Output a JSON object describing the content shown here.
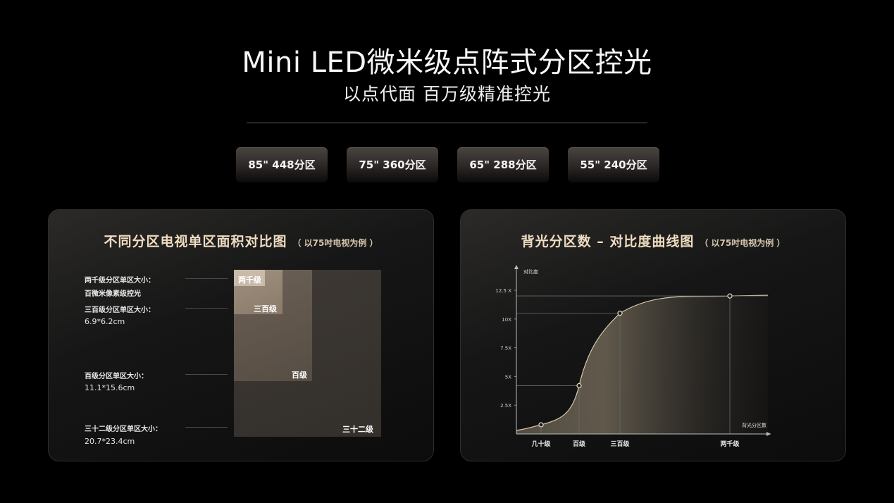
{
  "header": {
    "title": "Mini LED微米级点阵式分区控光",
    "subtitle": "以点代面 百万级精准控光"
  },
  "zones": [
    {
      "label": "85\" 448分区"
    },
    {
      "label": "75\" 360分区"
    },
    {
      "label": "65\" 288分区"
    },
    {
      "label": "55\" 240分区"
    }
  ],
  "left_panel": {
    "title": "不同分区电视单区面积对比图",
    "note": "（ 以75吋电视为例 ）",
    "specs": [
      {
        "label": "两千级分区单区大小：",
        "value": "百微米像素级控光"
      },
      {
        "label": "三百级分区单区大小：",
        "value": "6.9*6.2cm"
      },
      {
        "label": "百级分区单区大小：",
        "value": "11.1*15.6cm"
      },
      {
        "label": "三十二级分区单区大小：",
        "value": "20.7*23.4cm"
      }
    ],
    "boxes": {
      "b2000": "两千级",
      "b300": "三百级",
      "b100": "百级",
      "b32": "三十二级"
    }
  },
  "right_panel": {
    "title": "背光分区数 – 对比度曲线图",
    "note": "（ 以75吋电视为例 ）"
  },
  "chart_data": {
    "type": "area",
    "title": "背光分区数 – 对比度曲线图",
    "xlabel": "背光分区数",
    "ylabel": "对比度",
    "y_ticks": [
      "2.5X",
      "5X",
      "7.5X",
      "10X",
      "12.5 X"
    ],
    "ylim": [
      0,
      12.5
    ],
    "x": [
      "几十级",
      "百级",
      "三百级",
      "两千级"
    ],
    "values": [
      0.8,
      4.2,
      10.5,
      12.0
    ]
  },
  "colors": {
    "accent_title": "#efdcc0",
    "curve": "#d8c9a8",
    "background": "#000000"
  }
}
